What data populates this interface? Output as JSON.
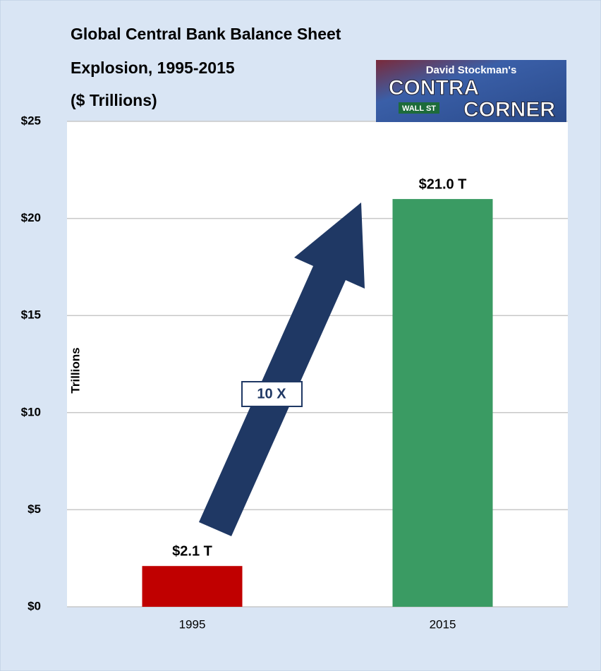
{
  "chart_data": {
    "type": "bar",
    "title": [
      "Global Central Bank Balance Sheet",
      "Explosion, 1995-2015"
    ],
    "subtitle": "($ Trillions)",
    "y_label": "Trillions",
    "annotation": "10 X",
    "logo": [
      "David Stockman's",
      "CONTRA",
      "WALL ST",
      "CORNER"
    ],
    "categories": [
      "1995",
      "2015"
    ],
    "values": [
      2.1,
      21.0
    ],
    "value_labels": [
      "$2.1 T",
      "$21.0 T"
    ],
    "colors": [
      "#c00000",
      "#3a9b63"
    ],
    "ylim": [
      0,
      25
    ],
    "yticks": [
      {
        "value": 0,
        "label": "$0"
      },
      {
        "value": 5,
        "label": "$5"
      },
      {
        "value": 10,
        "label": "$10"
      },
      {
        "value": 15,
        "label": "$15"
      },
      {
        "value": 20,
        "label": "$20"
      },
      {
        "value": 25,
        "label": "$25"
      }
    ],
    "grid": true
  }
}
